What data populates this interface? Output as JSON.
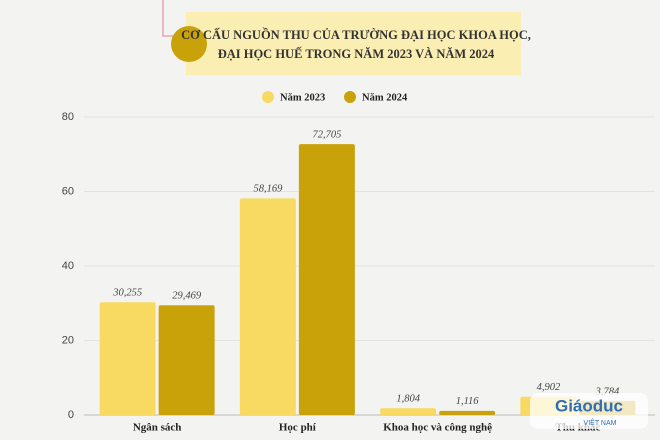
{
  "chart_data": {
    "type": "bar",
    "title": [
      "CƠ CẤU NGUỒN THU CỦA TRƯỜNG ĐẠI HỌC KHOA HỌC,",
      "ĐẠI HỌC HUẾ TRONG NĂM 2023 VÀ NĂM 2024"
    ],
    "categories": [
      "Ngân sách",
      "Học phí",
      "Khoa học và công nghệ",
      "Thu khác"
    ],
    "series": [
      {
        "name": "Năm 2023",
        "color": "#f8da62",
        "values": [
          30.255,
          58.169,
          1.804,
          4.902
        ],
        "value_labels": [
          "30,255",
          "58,169",
          "1,804",
          "4,902"
        ]
      },
      {
        "name": "Năm 2024",
        "color": "#c9a20a",
        "values": [
          29.469,
          72.705,
          1.116,
          3.784
        ],
        "value_labels": [
          "29,469",
          "72,705",
          "1,116",
          "3,784"
        ]
      }
    ],
    "ylim": [
      0,
      80
    ],
    "yticks": [
      0,
      20,
      40,
      60,
      80
    ],
    "grid": true,
    "legend": "top",
    "watermark": {
      "main": "Giáoduc",
      "sub": "VIỆT NAM"
    }
  }
}
